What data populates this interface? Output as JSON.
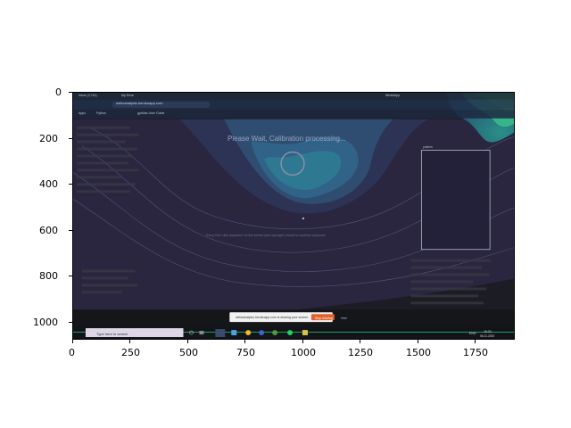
{
  "axes": {
    "x_ticks": [
      "0",
      "250",
      "500",
      "750",
      "1000",
      "1250",
      "1500",
      "1750"
    ],
    "y_ticks": [
      "0",
      "200",
      "400",
      "600",
      "800",
      "1000"
    ]
  },
  "browser": {
    "tabs": [
      "Inbox (2,741)",
      "My Drive",
      "10 Health...",
      "Assignment",
      "GD words",
      "Programmi",
      "Zoom - Go",
      "What is the",
      "WhatsApp",
      "Webc..."
    ],
    "address": "webcanalysis.herokuapp.com",
    "bookmarks": [
      "Apps",
      "Python",
      "CF",
      "gprMax User Guide",
      "WhatsApp",
      "CC, MD",
      "ISR DS",
      "STIFF",
      "study material",
      "Online Assignme",
      "MIDTR",
      "Coprotec",
      "MIC3S",
      "Superset",
      "Tend"
    ]
  },
  "page": {
    "calibration_message": "Please Wait, Calibration processing...",
    "instruction_text": "Every time click anywhere on the screen your eyesight, should to continue response",
    "panel_label": "pattern"
  },
  "share_bar": {
    "message": "webcanalysis.herokuapp.com is sharing your screen.",
    "stop_label": "Stop sharing",
    "hide_label": "Hide"
  },
  "taskbar": {
    "search_placeholder": "Type here to search",
    "language": "ENG",
    "time": "16:34",
    "date": "06-11-2020"
  },
  "colors": {
    "contour_dark": "#2b2347",
    "contour_mid": "#2f6f8a",
    "contour_bright": "#34b98a",
    "stop_button": "#e2622a",
    "taskbar_line": "#22c55e"
  }
}
